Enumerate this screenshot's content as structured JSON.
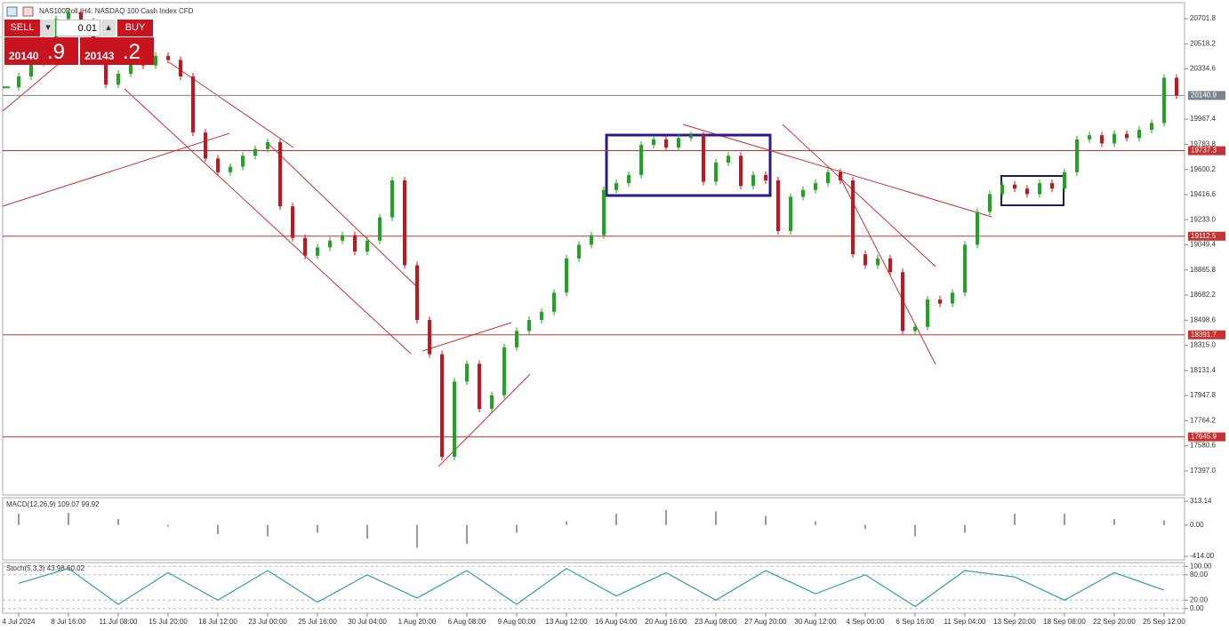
{
  "header": {
    "title": "NAS100Roll, H4:  NASDAQ 100 Cash Index CFD"
  },
  "trade_panel": {
    "sell": "SELL",
    "lot": "0.01",
    "buy": "BUY",
    "bid_main": "20140",
    "bid_tail": ".9",
    "ask_main": "20143",
    "ask_tail": ".2"
  },
  "chart_data": [
    {
      "type": "candlestick",
      "categories": [
        null,
        "4 Jul 2024",
        null,
        null,
        null,
        "8 Jul 16:00",
        null,
        null,
        null,
        "11 Jul 08:00",
        null,
        null,
        null,
        "15 Jul 20:00",
        null,
        null,
        null,
        "18 Jul 12:00",
        null,
        null,
        null,
        "23 Jul 00:00",
        null,
        null,
        null,
        "25 Jul 16:00",
        null,
        null,
        null,
        "30 Jul 04:00",
        null,
        null,
        null,
        "1 Aug 20:00",
        null,
        null,
        null,
        "6 Aug 08:00",
        null,
        null,
        null,
        "9 Aug 00:00",
        null,
        null,
        null,
        "13 Aug 12:00",
        null,
        null,
        null,
        "16 Aug 04:00",
        null,
        null,
        null,
        "20 Aug 16:00",
        null,
        null,
        null,
        "23 Aug 08:00",
        null,
        null,
        null,
        "27 Aug 20:00",
        null,
        null,
        null,
        "30 Aug 12:00",
        null,
        null,
        null,
        "4 Sep 00:00",
        null,
        null,
        null,
        "6 Sep 16:00",
        null,
        null,
        null,
        "11 Sep 04:00",
        null,
        null,
        null,
        "13 Sep 20:00",
        null,
        null,
        null,
        "18 Sep 08:00",
        null,
        null,
        null,
        "22 Sep 20:00",
        null,
        null,
        null,
        "25 Sep 12:00",
        null
      ],
      "values": [
        20200,
        20280,
        20380,
        20550,
        20700,
        20750,
        20680,
        20500,
        20220,
        20300,
        20390,
        20360,
        20430,
        20400,
        20280,
        19870,
        19680,
        19580,
        19620,
        19700,
        19750,
        19800,
        19330,
        19100,
        18970,
        19030,
        19080,
        19120,
        19000,
        19080,
        19250,
        19520,
        18900,
        18500,
        18250,
        17500,
        18050,
        18180,
        17850,
        17950,
        18300,
        18420,
        18500,
        18560,
        18700,
        18950,
        19050,
        19120,
        19450,
        19500,
        19560,
        19780,
        19820,
        19760,
        19830,
        19850,
        19510,
        19650,
        19700,
        19480,
        19560,
        19520,
        19150,
        19400,
        19450,
        19500,
        19580,
        19520,
        18980,
        18900,
        18950,
        18850,
        18420,
        18450,
        18650,
        18620,
        18700,
        19050,
        19290,
        19420,
        19490,
        19460,
        19420,
        19500,
        19460,
        19580,
        19820,
        19850,
        19790,
        19860,
        19830,
        19890,
        19940,
        20270,
        20140.9
      ],
      "up_color": "#1fa51f",
      "down_color": "#c8141e",
      "levels": [
        19737.3,
        19112.5,
        18391.7,
        17645.9
      ],
      "level_color": "#c83232",
      "last_price": 20140.9,
      "last_color": "#7a8590",
      "ylim": [
        17221,
        20819
      ],
      "yticks": [
        20701.8,
        20518.2,
        20334.6,
        19967.4,
        19783.8,
        19600.2,
        19416.6,
        {
          "value": 19233,
          "label": "19233.0"
        },
        19049.4,
        18865.8,
        18682.2,
        18498.6,
        {
          "value": 18315,
          "label": "18315.0"
        },
        18131.4,
        17947.8,
        17764.2,
        17580.6,
        {
          "value": 17397,
          "label": "17397.0"
        }
      ]
    },
    {
      "type": "bar",
      "title": "MACD(12,26,9) 109.07 99.92",
      "values": [
        150,
        160,
        80,
        -20,
        -120,
        -150,
        -100,
        -180,
        -300,
        -250,
        -100,
        50,
        150,
        200,
        180,
        120,
        50,
        -50,
        -150,
        -100,
        150,
        150,
        80,
        60
      ],
      "color": "#9a9a9a",
      "ylim": [
        -460,
        361
      ],
      "yticks": [
        313.14,
        {
          "value": 0,
          "label": "0.00"
        },
        {
          "value": -414,
          "label": "-414.00"
        }
      ]
    },
    {
      "type": "line",
      "title": "Stoch(5,3,3) 43.98 60.02",
      "values": [
        60,
        95,
        10,
        85,
        20,
        90,
        15,
        80,
        25,
        90,
        10,
        95,
        30,
        85,
        20,
        90,
        35,
        80,
        5,
        90,
        75,
        20,
        85,
        43.98
      ],
      "color": "#3a9aa8",
      "ylim": [
        -11,
        109
      ],
      "yticks": [
        {
          "value": 100,
          "label": "100.00"
        },
        {
          "value": 80,
          "label": "80.00"
        },
        {
          "value": 20,
          "label": "20.00"
        },
        {
          "value": 0,
          "label": "0.00"
        }
      ]
    }
  ]
}
